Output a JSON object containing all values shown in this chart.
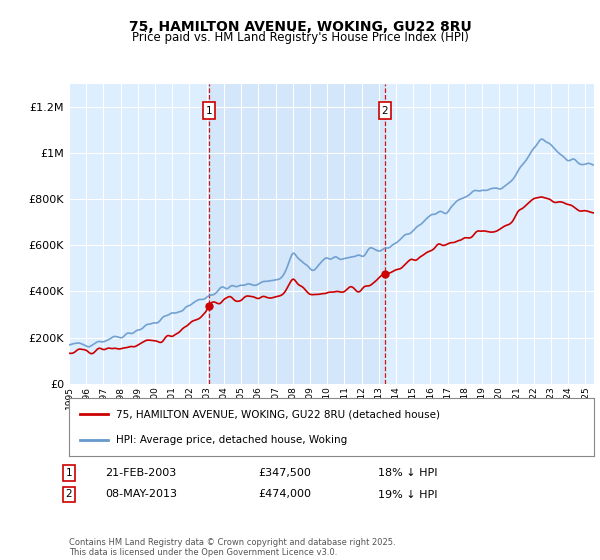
{
  "title": "75, HAMILTON AVENUE, WOKING, GU22 8RU",
  "subtitle": "Price paid vs. HM Land Registry's House Price Index (HPI)",
  "ylabel_ticks": [
    "£0",
    "£200K",
    "£400K",
    "£600K",
    "£800K",
    "£1M",
    "£1.2M"
  ],
  "ytick_values": [
    0,
    200000,
    400000,
    600000,
    800000,
    1000000,
    1200000
  ],
  "ylim": [
    0,
    1300000
  ],
  "sale1_date": "21-FEB-2003",
  "sale1_price": 347500,
  "sale1_hpi_diff": "18% ↓ HPI",
  "sale2_date": "08-MAY-2013",
  "sale2_price": 474000,
  "sale2_hpi_diff": "19% ↓ HPI",
  "legend_label_red": "75, HAMILTON AVENUE, WOKING, GU22 8RU (detached house)",
  "legend_label_blue": "HPI: Average price, detached house, Woking",
  "footer": "Contains HM Land Registry data © Crown copyright and database right 2025.\nThis data is licensed under the Open Government Licence v3.0.",
  "red_color": "#cc0000",
  "blue_color": "#6699cc",
  "background_plot": "#ddeeff",
  "grid_color": "#ffffff",
  "sale1_year": 2003.13,
  "sale2_year": 2013.36,
  "xmin": 1995.0,
  "xmax": 2025.5
}
